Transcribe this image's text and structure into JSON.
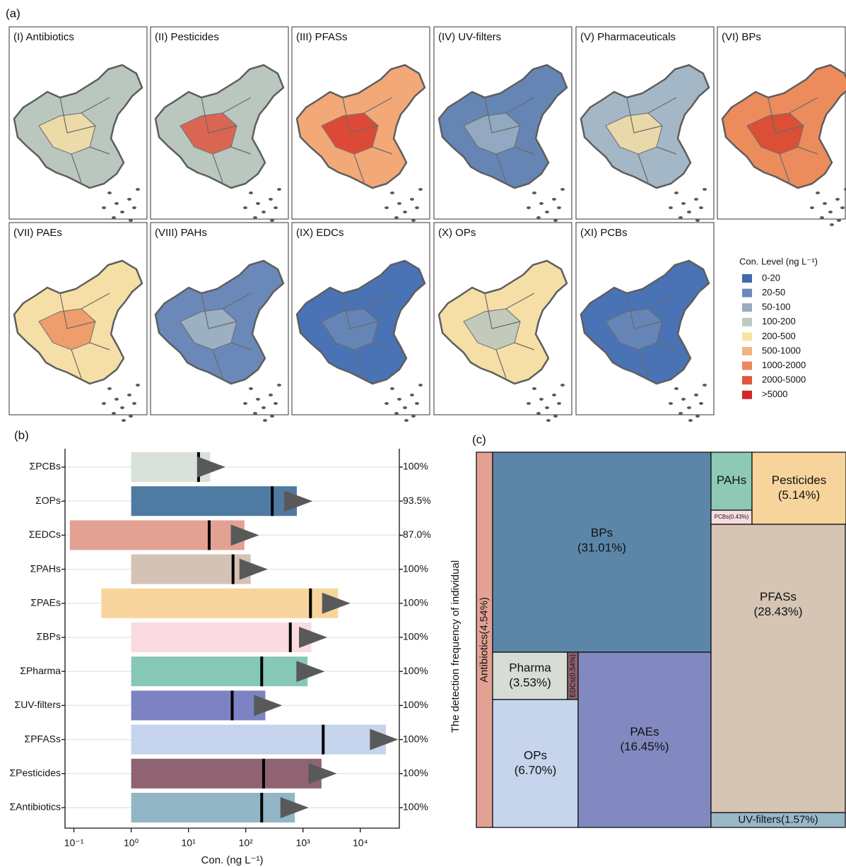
{
  "figure_labels": [
    "(a)",
    "(b)",
    "(c)"
  ],
  "maps": {
    "panels": [
      {
        "title": "(I) Antibiotics",
        "fill": "#b9c7bf",
        "accent": "#f6dfa6"
      },
      {
        "title": "(II) Pesticides",
        "fill": "#b9c7bf",
        "accent": "#e0553f"
      },
      {
        "title": "(III) PFASs",
        "fill": "#f3a877",
        "accent": "#d83a2c"
      },
      {
        "title": "(IV) UV-filters",
        "fill": "#6585b4",
        "accent": "#9bb0c4"
      },
      {
        "title": "(V) Pharmaceuticals",
        "fill": "#a4b7c6",
        "accent": "#f6dfa6"
      },
      {
        "title": "(VI) BPs",
        "fill": "#ec8c5c",
        "accent": "#d8452f"
      },
      {
        "title": "(VII) PAEs",
        "fill": "#f6dfa6",
        "accent": "#ee9264"
      },
      {
        "title": "(VIII) PAHs",
        "fill": "#6a89b8",
        "accent": "#a4b7c6"
      },
      {
        "title": "(IX) EDCs",
        "fill": "#4a73b5",
        "accent": "#6a89b8"
      },
      {
        "title": "(X) OPs",
        "fill": "#f6dfa6",
        "accent": "#b9c7bf"
      },
      {
        "title": "(XI) PCBs",
        "fill": "#4a73b5",
        "accent": "#6a89b8"
      }
    ],
    "legend": {
      "title": "Con. Level (ng L⁻¹)",
      "items": [
        {
          "label": "0-20",
          "color": "#4169b0"
        },
        {
          "label": "20-50",
          "color": "#6a89b8"
        },
        {
          "label": "50-100",
          "color": "#98abc0"
        },
        {
          "label": "100-200",
          "color": "#bccabf"
        },
        {
          "label": "200-500",
          "color": "#f8e3a6"
        },
        {
          "label": "500-1000",
          "color": "#f5b27d"
        },
        {
          "label": "1000-2000",
          "color": "#ec8a5c"
        },
        {
          "label": "2000-5000",
          "color": "#df573e"
        },
        {
          "label": ">5000",
          "color": "#d0282a"
        }
      ]
    }
  },
  "chart_data": [
    {
      "type": "range_bar",
      "x_label": "Con. (ng L⁻¹)",
      "y2_label": "The detection frequency of individual",
      "log_x": true,
      "categories": [
        "ΣPCBs",
        "ΣOPs",
        "ΣEDCs",
        "ΣPAHs",
        "ΣPAEs",
        "ΣBPs",
        "ΣPharma",
        "ΣUV-filters",
        "ΣPFASs",
        "ΣPesticides",
        "ΣAntibiotics"
      ],
      "colors": [
        "#d8e2da",
        "#4f7ba2",
        "#e3a194",
        "#d4c2b4",
        "#f7d59c",
        "#f9dbe1",
        "#86c8b6",
        "#7d83c2",
        "#c6d3ec",
        "#8f6371",
        "#93b6c6"
      ],
      "min": [
        1,
        1,
        0.085,
        1,
        0.3,
        1,
        1,
        1,
        1,
        1,
        1
      ],
      "max": [
        24,
        780,
        95,
        122,
        4100,
        1400,
        1200,
        220,
        28000,
        2100,
        720
      ],
      "median": [
        15,
        290,
        23,
        60,
        1350,
        600,
        190,
        58,
        2250,
        205,
        190
      ],
      "mean": [
        25,
        830,
        97,
        137,
        3800,
        1500,
        1350,
        245,
        26000,
        2200,
        710
      ],
      "detection": {
        "values": [
          100,
          93.5,
          87.0,
          100,
          100,
          100,
          100,
          100,
          100,
          100,
          100
        ],
        "value_labels": [
          "100%",
          "93.5%",
          "87.0%",
          "100%",
          "100%",
          "100%",
          "100%",
          "100%",
          "100%",
          "100%",
          "100%"
        ]
      },
      "xlim": [
        0.07,
        48000
      ],
      "xticks": [
        {
          "value": 0.1,
          "label": "10⁻¹"
        },
        {
          "value": 1,
          "label": "10⁰"
        },
        {
          "value": 10,
          "label": "10¹"
        },
        {
          "value": 100,
          "label": "10²"
        },
        {
          "value": 1000,
          "label": "10³"
        },
        {
          "value": 10000,
          "label": "10⁴"
        }
      ],
      "grid": true
    },
    {
      "type": "treemap",
      "categories": [
        "Antibiotics",
        "BPs",
        "Pharma",
        "EDCs",
        "OPs",
        "PAEs",
        "PAHs",
        "PCBs",
        "Pesticides",
        "PFASs",
        "UV-filters"
      ],
      "values": [
        4.54,
        31.01,
        3.53,
        0.54,
        6.7,
        16.45,
        1.66,
        0.43,
        5.14,
        28.43,
        1.57
      ],
      "value_labels": [
        "(4.54%)",
        "(31.01%)",
        "(3.53%)",
        "(0.54%)",
        "(6.70%)",
        "(16.45%)",
        null,
        "(0.43%)",
        "(5.14%)",
        "(28.43%)",
        "(1.57%)"
      ],
      "colors": [
        "#e3a194",
        "#5b86a8",
        "#d5ddd5",
        "#8e6170",
        "#c6d4ec",
        "#8189c0",
        "#8ec9b6",
        "#f8dce1",
        "#f7d49c",
        "#d6c4b5",
        "#98b8c8"
      ]
    }
  ]
}
